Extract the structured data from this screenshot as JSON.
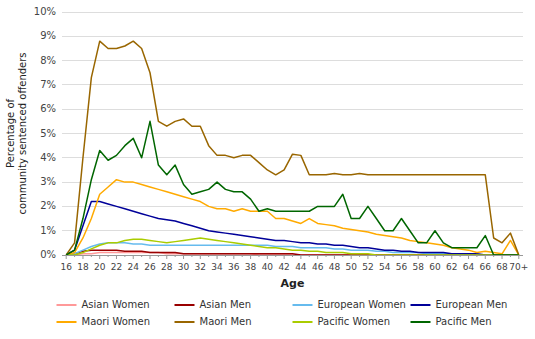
{
  "chart_data": {
    "type": "line",
    "xlabel": "Age",
    "ylabel": "Percentage of\ncommunity sentenced offenders",
    "categories": [
      "16",
      null,
      "18",
      null,
      "20",
      null,
      "22",
      null,
      "24",
      null,
      "26",
      null,
      "28",
      null,
      "30",
      null,
      "32",
      null,
      "34",
      null,
      "36",
      null,
      "38",
      null,
      "40",
      null,
      "42",
      null,
      "44",
      null,
      "46",
      null,
      "48",
      null,
      "50",
      null,
      "52",
      null,
      "54",
      null,
      "56",
      null,
      "58",
      null,
      "60",
      null,
      "62",
      null,
      "64",
      null,
      "66",
      null,
      "68",
      null,
      "70+"
    ],
    "series": [
      {
        "name": "Asian Women",
        "color": "#ff9999",
        "values": [
          0.0,
          0.0,
          0.05,
          0.05,
          0.1,
          0.1,
          0.1,
          0.1,
          0.1,
          0.1,
          0.1,
          0.1,
          0.05,
          0.05,
          0.05,
          0.05,
          0.05,
          0.05,
          0.05,
          0.05,
          0.05,
          0.05,
          0.05,
          0.0,
          0.0,
          0.0,
          0.0,
          0.0,
          0.0,
          0.0,
          0.0,
          0.0,
          0.0,
          0.0,
          0.0,
          0.0,
          0.0,
          0.0,
          0.0,
          0.0,
          0.0,
          0.0,
          0.0,
          0.0,
          0.0,
          0.0,
          0.0,
          0.0,
          0.0,
          0.0,
          0.0,
          0.0,
          0.0,
          0.0,
          0.0
        ]
      },
      {
        "name": "Asian Men",
        "color": "#990000",
        "values": [
          0.0,
          0.05,
          0.15,
          0.2,
          0.2,
          0.2,
          0.2,
          0.15,
          0.15,
          0.15,
          0.1,
          0.1,
          0.1,
          0.1,
          0.05,
          0.05,
          0.05,
          0.05,
          0.05,
          0.05,
          0.05,
          0.05,
          0.05,
          0.05,
          0.05,
          0.05,
          0.05,
          0.05,
          0.0,
          0.0,
          0.0,
          0.0,
          0.0,
          0.0,
          0.0,
          0.0,
          0.0,
          0.0,
          0.0,
          0.0,
          0.0,
          0.0,
          0.0,
          0.0,
          0.0,
          0.0,
          0.0,
          0.0,
          0.0,
          0.0,
          0.0,
          0.0,
          0.0,
          0.0,
          0.0
        ]
      },
      {
        "name": "European Women",
        "color": "#66bbee",
        "values": [
          0.0,
          0.05,
          0.2,
          0.35,
          0.45,
          0.5,
          0.5,
          0.5,
          0.45,
          0.45,
          0.4,
          0.4,
          0.4,
          0.4,
          0.4,
          0.4,
          0.4,
          0.4,
          0.4,
          0.4,
          0.4,
          0.4,
          0.4,
          0.4,
          0.4,
          0.35,
          0.35,
          0.35,
          0.3,
          0.3,
          0.3,
          0.3,
          0.25,
          0.25,
          0.2,
          0.2,
          0.2,
          0.15,
          0.15,
          0.1,
          0.1,
          0.1,
          0.1,
          0.05,
          0.05,
          0.05,
          0.05,
          0.0,
          0.0,
          0.0,
          0.0,
          0.0,
          0.0,
          0.0,
          0.0
        ]
      },
      {
        "name": "European Men",
        "color": "#000099",
        "values": [
          0.0,
          0.2,
          1.2,
          2.2,
          2.2,
          2.1,
          2.0,
          1.9,
          1.8,
          1.7,
          1.6,
          1.5,
          1.45,
          1.4,
          1.3,
          1.2,
          1.1,
          1.0,
          0.95,
          0.9,
          0.85,
          0.8,
          0.75,
          0.7,
          0.65,
          0.6,
          0.6,
          0.55,
          0.5,
          0.5,
          0.45,
          0.45,
          0.4,
          0.4,
          0.35,
          0.3,
          0.3,
          0.25,
          0.2,
          0.2,
          0.15,
          0.15,
          0.1,
          0.1,
          0.1,
          0.1,
          0.05,
          0.05,
          0.05,
          0.05,
          0.0,
          0.0,
          0.0,
          0.0,
          0.0
        ]
      },
      {
        "name": "Maori Women",
        "color": "#ffaa00",
        "values": [
          0.0,
          0.1,
          0.7,
          1.5,
          2.5,
          2.8,
          3.1,
          3.0,
          3.0,
          2.9,
          2.8,
          2.7,
          2.6,
          2.5,
          2.4,
          2.3,
          2.2,
          2.0,
          1.9,
          1.9,
          1.8,
          1.9,
          1.8,
          1.8,
          1.8,
          1.5,
          1.5,
          1.4,
          1.3,
          1.5,
          1.3,
          1.25,
          1.2,
          1.1,
          1.05,
          1.0,
          0.95,
          0.85,
          0.8,
          0.75,
          0.7,
          0.6,
          0.55,
          0.5,
          0.45,
          0.4,
          0.3,
          0.25,
          0.2,
          0.1,
          0.15,
          0.1,
          0.05,
          0.6,
          0.0
        ]
      },
      {
        "name": "Maori Men",
        "color": "#996600",
        "values": [
          0.0,
          0.5,
          4.0,
          7.3,
          8.8,
          8.5,
          8.5,
          8.6,
          8.8,
          8.5,
          7.5,
          5.5,
          5.3,
          5.5,
          5.6,
          5.3,
          5.3,
          4.5,
          4.1,
          4.1,
          4.0,
          4.1,
          4.1,
          3.8,
          3.5,
          3.3,
          3.5,
          4.15,
          4.1,
          3.3,
          3.3,
          3.3,
          3.35,
          3.3,
          3.3,
          3.35,
          3.3,
          3.3,
          3.3,
          3.3,
          3.3,
          3.3,
          3.3,
          3.3,
          3.3,
          3.3,
          3.3,
          3.3,
          3.3,
          3.3,
          3.3,
          0.7,
          0.5,
          0.9,
          0.0
        ]
      },
      {
        "name": "Pacific Women",
        "color": "#aacc00",
        "values": [
          0.0,
          0.0,
          0.1,
          0.25,
          0.4,
          0.5,
          0.5,
          0.6,
          0.65,
          0.65,
          0.6,
          0.55,
          0.5,
          0.55,
          0.6,
          0.65,
          0.7,
          0.65,
          0.6,
          0.55,
          0.5,
          0.45,
          0.4,
          0.35,
          0.3,
          0.3,
          0.25,
          0.2,
          0.2,
          0.15,
          0.15,
          0.1,
          0.1,
          0.1,
          0.05,
          0.05,
          0.05,
          0.0,
          0.0,
          0.0,
          0.0,
          0.0,
          0.0,
          0.0,
          0.0,
          0.0,
          0.0,
          0.0,
          0.0,
          0.0,
          0.0,
          0.0,
          0.0,
          0.0,
          0.0
        ]
      },
      {
        "name": "Pacific Men",
        "color": "#006600",
        "values": [
          0.0,
          0.2,
          1.5,
          3.1,
          4.3,
          3.9,
          4.1,
          4.5,
          4.8,
          4.0,
          5.5,
          3.7,
          3.3,
          3.7,
          2.9,
          2.5,
          2.6,
          2.7,
          3.0,
          2.7,
          2.6,
          2.6,
          2.3,
          1.8,
          1.9,
          1.8,
          1.8,
          1.8,
          1.8,
          1.8,
          2.0,
          2.0,
          2.0,
          2.5,
          1.5,
          1.5,
          2.0,
          1.5,
          1.0,
          1.0,
          1.5,
          1.0,
          0.5,
          0.5,
          1.0,
          0.5,
          0.3,
          0.3,
          0.3,
          0.3,
          0.8,
          0.0,
          0.0,
          0.0,
          0.0
        ]
      }
    ],
    "ylim": [
      0,
      10
    ],
    "yticks": [
      {
        "value": 0,
        "label": "0%"
      },
      {
        "value": 1,
        "label": "1%"
      },
      {
        "value": 2,
        "label": "2%"
      },
      {
        "value": 3,
        "label": "3%"
      },
      {
        "value": 4,
        "label": "4%"
      },
      {
        "value": 5,
        "label": "5%"
      },
      {
        "value": 6,
        "label": "6%"
      },
      {
        "value": 7,
        "label": "7%"
      },
      {
        "value": 8,
        "label": "8%"
      },
      {
        "value": 9,
        "label": "9%"
      },
      {
        "value": 10,
        "label": "10%"
      }
    ],
    "grid": true,
    "legend": "bottom"
  }
}
